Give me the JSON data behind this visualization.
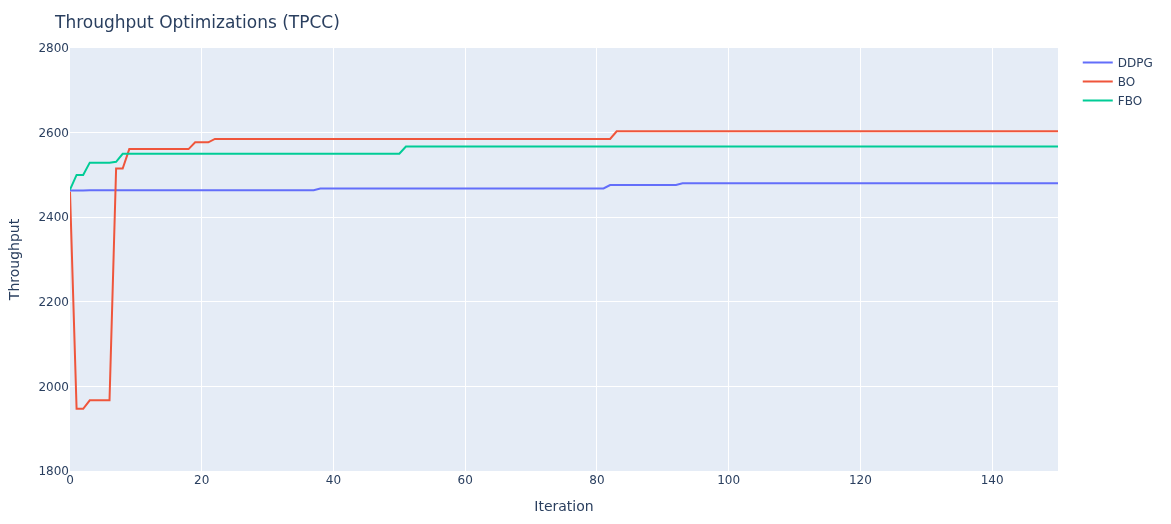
{
  "chart_data": {
    "type": "line",
    "title": "Throughput Optimizations (TPCC)",
    "xlabel": "Iteration",
    "ylabel": "Throughput",
    "xlim": [
      0,
      150
    ],
    "xticks": [
      0,
      20,
      40,
      60,
      80,
      100,
      120,
      140
    ],
    "ylim": [
      1800,
      2800
    ],
    "yticks": [
      1800,
      2000,
      2200,
      2400,
      2600,
      2800
    ],
    "grid": true,
    "legend": "top right",
    "series": [
      {
        "name": "DDPG",
        "color": "#636efa",
        "x": [
          0,
          2,
          3,
          37,
          38,
          81,
          82,
          92,
          93,
          150
        ],
        "values": [
          2463,
          2463,
          2464,
          2464,
          2468,
          2468,
          2476,
          2476,
          2480,
          2480
        ]
      },
      {
        "name": "BO",
        "color": "#ef553b",
        "x": [
          0,
          1,
          2,
          3,
          6,
          7,
          8,
          9,
          18,
          19,
          21,
          22,
          82,
          83,
          150
        ],
        "values": [
          2460,
          1947,
          1947,
          1967,
          1967,
          2515,
          2515,
          2561,
          2561,
          2577,
          2577,
          2585,
          2585,
          2603,
          2603
        ]
      },
      {
        "name": "FBO",
        "color": "#00cc96",
        "x": [
          0,
          1,
          2,
          3,
          6,
          7,
          8,
          50,
          51,
          150
        ],
        "values": [
          2465,
          2500,
          2500,
          2529,
          2529,
          2531,
          2550,
          2550,
          2567,
          2567
        ]
      }
    ]
  }
}
